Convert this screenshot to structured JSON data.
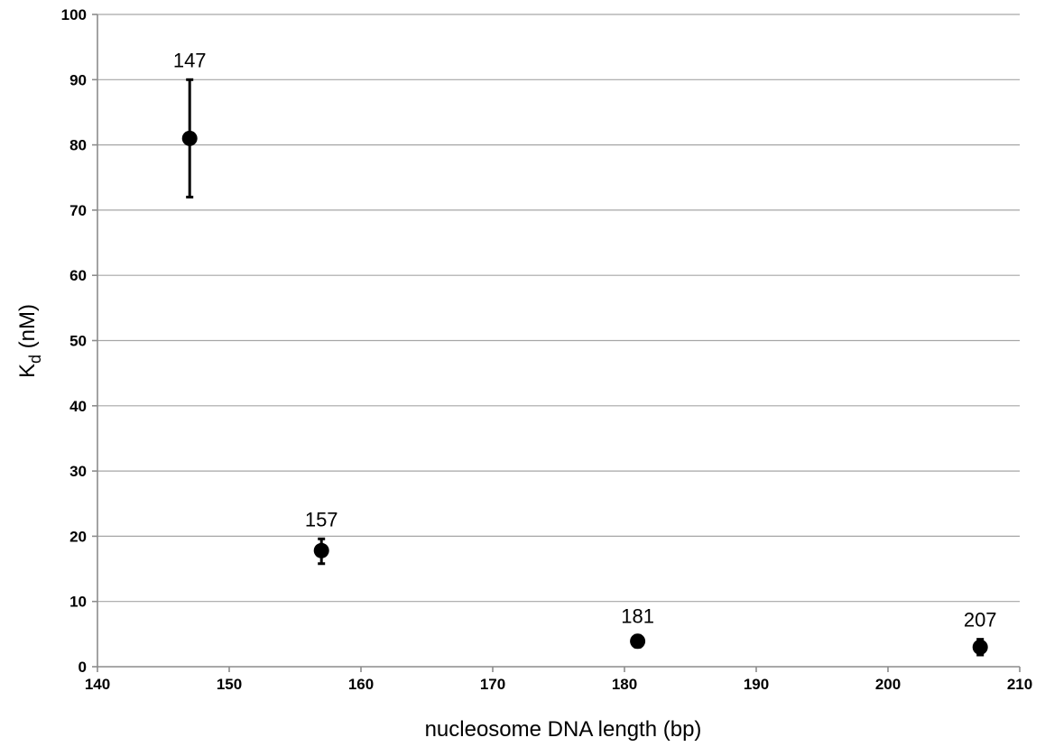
{
  "chart_data": {
    "type": "scatter",
    "title": "",
    "xlabel": "nucleosome DNA length (bp)",
    "ylabel_main": "K",
    "ylabel_sub": "d",
    "ylabel_unit": " (nM)",
    "xlim": [
      140,
      210
    ],
    "ylim": [
      0,
      100
    ],
    "xticks": [
      140,
      150,
      160,
      170,
      180,
      190,
      200,
      210
    ],
    "yticks": [
      0,
      10,
      20,
      30,
      40,
      50,
      60,
      70,
      80,
      90,
      100
    ],
    "grid": "horizontal",
    "legend": "none",
    "marker_color": "#000000",
    "points": [
      {
        "x": 147,
        "y": 81,
        "err_low": 72,
        "err_high": 90,
        "label": "147"
      },
      {
        "x": 157,
        "y": 17.8,
        "err_low": 15.8,
        "err_high": 19.6,
        "label": "157"
      },
      {
        "x": 181,
        "y": 3.9,
        "err_low": 3.0,
        "err_high": 4.8,
        "label": "181"
      },
      {
        "x": 207,
        "y": 3.0,
        "err_low": 1.8,
        "err_high": 4.2,
        "label": "207"
      }
    ]
  }
}
